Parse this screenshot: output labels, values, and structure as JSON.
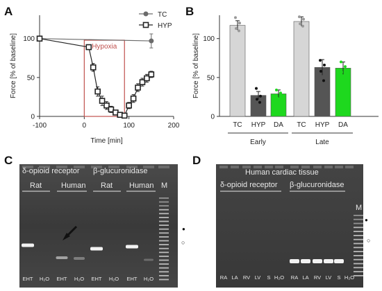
{
  "panels": {
    "A": {
      "label": "A",
      "chart_data": {
        "type": "line",
        "xlabel": "Time [min]",
        "ylabel": "Force [% of baseline]",
        "xlim": [
          -100,
          200
        ],
        "ylim": [
          0,
          130
        ],
        "xticks": [
          -100,
          0,
          100,
          200
        ],
        "yticks": [
          0,
          50,
          100
        ],
        "annotation": "Hypoxia",
        "annotation_range": [
          0,
          90
        ],
        "legend_position": "top-right",
        "series": [
          {
            "name": "TC",
            "x": [
              -100,
              150
            ],
            "y": [
              100,
              97
            ],
            "err": [
              0,
              9
            ],
            "marker": "circle",
            "color": "#6b6b6b"
          },
          {
            "name": "HYP",
            "x": [
              -100,
              10,
              20,
              30,
              40,
              50,
              60,
              70,
              80,
              90,
              100,
              110,
              120,
              130,
              140,
              150
            ],
            "y": [
              100,
              89,
              63,
              32,
              20,
              14,
              9,
              5,
              2,
              1,
              14,
              23,
              37,
              44,
              49,
              54
            ],
            "err": [
              0,
              3,
              5,
              6,
              6,
              5,
              4,
              3,
              2,
              2,
              4,
              5,
              5,
              5,
              5,
              4
            ],
            "marker": "square",
            "color": "#222222"
          }
        ]
      }
    },
    "B": {
      "label": "B",
      "chart_data": {
        "type": "bar",
        "ylabel": "Force [% of baseline]",
        "ylim": [
          0,
          130
        ],
        "yticks": [
          0,
          50,
          100
        ],
        "categories": [
          "TC",
          "HYP",
          "DA",
          "TC",
          "HYP",
          "DA"
        ],
        "groups": [
          {
            "name": "Early",
            "span": [
              0,
              2
            ]
          },
          {
            "name": "Late",
            "span": [
              3,
              5
            ]
          }
        ],
        "values": [
          117,
          27,
          29,
          122,
          63,
          62
        ],
        "errors": [
          6,
          5,
          5,
          6,
          10,
          8
        ],
        "colors": [
          "#d6d6d6",
          "#555555",
          "#1ed81e",
          "#d6d6d6",
          "#555555",
          "#1ed81e"
        ],
        "points": [
          [
            127,
            120,
            113,
            110
          ],
          [
            36,
            26,
            22,
            18
          ],
          [
            34,
            30,
            24,
            20
          ],
          [
            128,
            125,
            119,
            116
          ],
          [
            72,
            66,
            58,
            46
          ],
          [
            70,
            64,
            57,
            47
          ]
        ]
      }
    },
    "C": {
      "label": "C",
      "header_left": "δ-opioid receptor",
      "header_right": "β-glucuronidase",
      "sub_rat1": "Rat",
      "sub_human1": "Human",
      "sub_rat2": "Rat",
      "sub_human2": "Human",
      "marker_label": "M",
      "lanes": [
        "EHT",
        "H₂O",
        "EHT",
        "H₂O",
        "EHT",
        "H₂O",
        "EHT",
        "H₂O"
      ]
    },
    "D": {
      "label": "D",
      "title": "Human cardiac tissue",
      "header_left": "δ-opioid receptor",
      "header_right": "β-glucuronidase",
      "marker_label": "M",
      "lanes": [
        "RA",
        "LA",
        "RV",
        "LV",
        "S",
        "H₂O",
        "RA",
        "LA",
        "RV",
        "LV",
        "S",
        "H₂O"
      ]
    }
  },
  "side_marks": {
    "filled": "●",
    "open": "○"
  }
}
